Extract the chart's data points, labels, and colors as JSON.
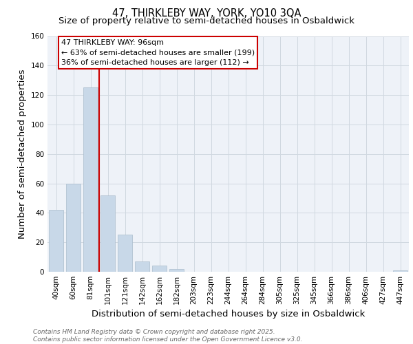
{
  "title_line1": "47, THIRKLEBY WAY, YORK, YO10 3QA",
  "title_line2": "Size of property relative to semi-detached houses in Osbaldwick",
  "xlabel": "Distribution of semi-detached houses by size in Osbaldwick",
  "ylabel": "Number of semi-detached properties",
  "categories": [
    "40sqm",
    "60sqm",
    "81sqm",
    "101sqm",
    "121sqm",
    "142sqm",
    "162sqm",
    "182sqm",
    "203sqm",
    "223sqm",
    "244sqm",
    "264sqm",
    "284sqm",
    "305sqm",
    "325sqm",
    "345sqm",
    "366sqm",
    "386sqm",
    "406sqm",
    "427sqm",
    "447sqm"
  ],
  "values": [
    42,
    60,
    125,
    52,
    25,
    7,
    4,
    2,
    0,
    0,
    0,
    0,
    0,
    0,
    0,
    0,
    0,
    0,
    0,
    0,
    1
  ],
  "bar_color": "#c8d8e8",
  "bar_edge_color": "#aabccc",
  "vline_color": "#cc0000",
  "vline_label": "47 THIRKLEBY WAY: 96sqm",
  "annotation_smaller": "← 63% of semi-detached houses are smaller (199)",
  "annotation_larger": "36% of semi-detached houses are larger (112) →",
  "annotation_box_color": "#ffffff",
  "annotation_box_edge": "#cc0000",
  "ylim": [
    0,
    160
  ],
  "yticks": [
    0,
    20,
    40,
    60,
    80,
    100,
    120,
    140,
    160
  ],
  "grid_color": "#d0d8e0",
  "background_color": "#eef2f8",
  "footnote": "Contains HM Land Registry data © Crown copyright and database right 2025.\nContains public sector information licensed under the Open Government Licence v3.0.",
  "title_fontsize": 10.5,
  "subtitle_fontsize": 9.5,
  "axis_label_fontsize": 9.5,
  "tick_fontsize": 7.5,
  "annotation_fontsize": 8,
  "footnote_fontsize": 6.5
}
